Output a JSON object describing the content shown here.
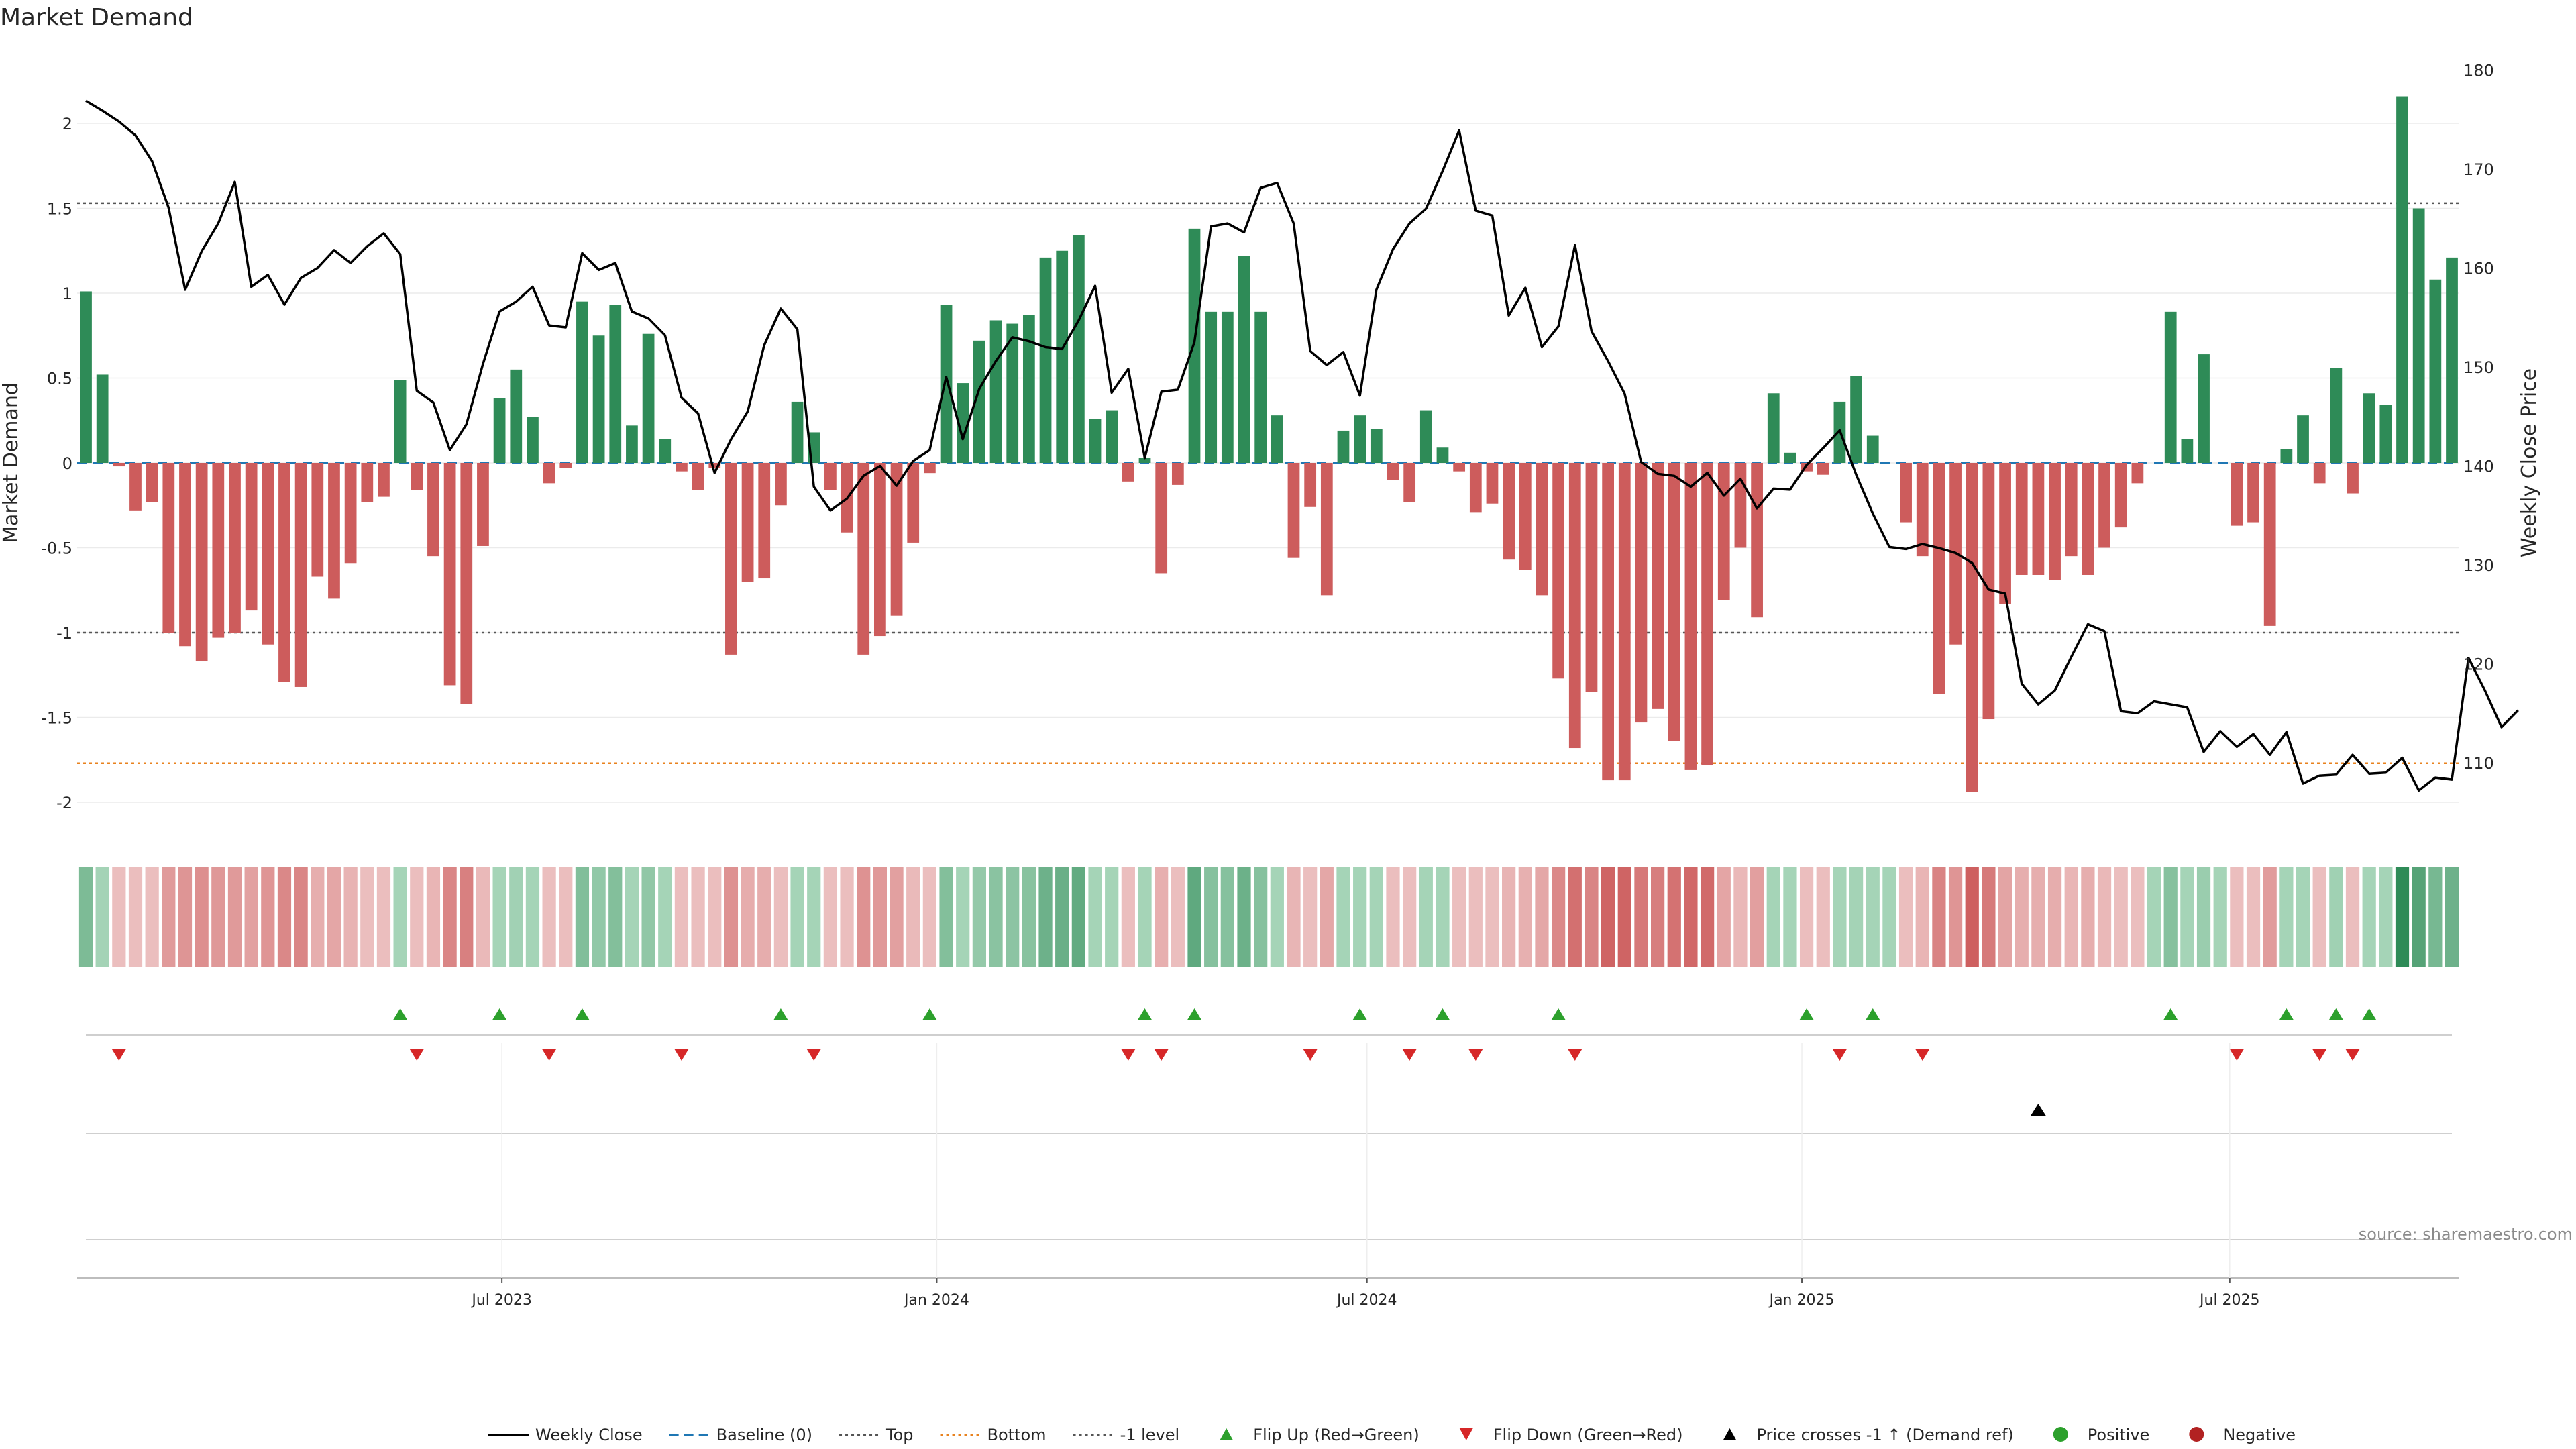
{
  "chart_data": {
    "type": "bar",
    "title": "Market Demand",
    "source": "source: sharemaestro.com",
    "left_axis": {
      "label": "Market Demand",
      "ylim": [
        -2.2,
        2.35
      ],
      "ticks": [
        -2,
        -1.5,
        -1,
        -0.5,
        0,
        0.5,
        1,
        1.5,
        2
      ]
    },
    "right_axis": {
      "label": "Weekly Close Price",
      "ylim": [
        103.5,
        182
      ],
      "ticks": [
        110,
        120,
        130,
        140,
        150,
        160,
        170,
        180
      ]
    },
    "x_axis": {
      "start": "2023-01-06",
      "week_days": 7,
      "ticks": [
        {
          "label": "Jul 2023",
          "date": "2023-07-01"
        },
        {
          "label": "Jan 2024",
          "date": "2024-01-01"
        },
        {
          "label": "Jul 2024",
          "date": "2024-07-01"
        },
        {
          "label": "Jan 2025",
          "date": "2025-01-01"
        },
        {
          "label": "Jul 2025",
          "date": "2025-07-01"
        }
      ]
    },
    "reference_lines": {
      "top": 1.53,
      "bottom": -1.77,
      "minus_one": -1
    },
    "demand": [
      1.01,
      0.52,
      -0.02,
      -0.28,
      -0.23,
      -1.0,
      -1.08,
      -1.17,
      -1.03,
      -1.0,
      -0.87,
      -1.07,
      -1.29,
      -1.32,
      -0.67,
      -0.8,
      -0.59,
      -0.23,
      -0.2,
      0.49,
      -0.16,
      -0.55,
      -1.31,
      -1.42,
      -0.49,
      0.38,
      0.55,
      0.27,
      -0.12,
      -0.03,
      0.95,
      0.75,
      0.93,
      0.22,
      0.76,
      0.14,
      -0.05,
      -0.16,
      -0.03,
      -1.13,
      -0.7,
      -0.68,
      -0.25,
      0.36,
      0.18,
      -0.16,
      -0.41,
      -1.13,
      -1.02,
      -0.9,
      -0.47,
      -0.06,
      0.93,
      0.47,
      0.72,
      0.84,
      0.82,
      0.87,
      1.21,
      1.25,
      1.34,
      0.26,
      0.31,
      -0.11,
      0.03,
      -0.65,
      -0.13,
      1.38,
      0.89,
      0.89,
      1.22,
      0.89,
      0.28,
      -0.56,
      -0.26,
      -0.78,
      0.19,
      0.28,
      0.2,
      -0.1,
      -0.23,
      0.31,
      0.09,
      -0.05,
      -0.29,
      -0.24,
      -0.57,
      -0.63,
      -0.78,
      -1.27,
      -1.68,
      -1.35,
      -1.87,
      -1.87,
      -1.53,
      -1.45,
      -1.64,
      -1.81,
      -1.78,
      -0.81,
      -0.5,
      -0.91,
      0.41,
      0.06,
      -0.05,
      -0.07,
      0.36,
      0.51,
      0.16,
      0.0,
      -0.35,
      -0.55,
      -1.36,
      -1.07,
      -1.94,
      -1.51,
      -0.83,
      -0.66,
      -0.66,
      -0.69,
      -0.55,
      -0.66,
      -0.5,
      -0.38,
      -0.12,
      0.0,
      0.89,
      0.14,
      0.64,
      0.0,
      -0.37,
      -0.35,
      -0.96,
      0.08,
      0.28,
      -0.12,
      0.56,
      -0.18,
      0.41,
      0.34,
      2.16,
      1.5,
      1.08,
      1.21
    ],
    "weekly_close": [
      176.9,
      175.9,
      174.8,
      173.4,
      170.8,
      166.1,
      157.8,
      161.7,
      164.5,
      168.7,
      158.1,
      159.3,
      156.3,
      159.0,
      160.0,
      161.8,
      160.5,
      162.2,
      163.5,
      161.4,
      147.6,
      146.4,
      141.6,
      144.2,
      150.3,
      155.6,
      156.6,
      158.1,
      154.2,
      154.0,
      161.5,
      159.8,
      160.5,
      155.6,
      154.9,
      153.2,
      146.9,
      145.3,
      139.3,
      142.7,
      145.5,
      152.2,
      155.9,
      153.8,
      137.9,
      135.5,
      136.7,
      139.0,
      140.0,
      138.0,
      140.5,
      141.6,
      149.0,
      142.7,
      147.8,
      150.6,
      153.0,
      152.6,
      152.0,
      151.8,
      154.7,
      158.2,
      147.4,
      149.8,
      140.8,
      147.5,
      147.7,
      152.5,
      164.2,
      164.5,
      163.6,
      168.1,
      168.6,
      164.5,
      151.6,
      150.2,
      151.5,
      147.1,
      157.8,
      161.9,
      164.5,
      166.0,
      169.8,
      173.9,
      165.8,
      165.3,
      155.2,
      158.0,
      152.0,
      154.1,
      162.3,
      153.6,
      150.6,
      147.3,
      140.4,
      139.2,
      139.0,
      137.9,
      139.3,
      137.0,
      138.7,
      135.7,
      137.7,
      137.6,
      140.1,
      141.8,
      143.6,
      139.1,
      135.2,
      131.8,
      131.6,
      132.1,
      131.7,
      131.2,
      130.2,
      127.5,
      127.1,
      118.0,
      115.9,
      117.3,
      120.7,
      124.0,
      123.3,
      115.2,
      115.0,
      116.2,
      115.9,
      115.6,
      111.1,
      113.2,
      111.6,
      112.9,
      110.8,
      113.1,
      107.9,
      108.7,
      108.8,
      110.8,
      108.9,
      109.0,
      110.5,
      107.2,
      108.5,
      108.3,
      120.6,
      117.3,
      113.6,
      115.3
    ],
    "heat_strip": "Demand heat strip",
    "flip_up_weeks": [
      19,
      25,
      30,
      42,
      51,
      64,
      67,
      77,
      82,
      89,
      104,
      108,
      126,
      133,
      136,
      138
    ],
    "flip_down_weeks": [
      2,
      20,
      28,
      36,
      44,
      63,
      65,
      74,
      80,
      84,
      90,
      106,
      111,
      130,
      135,
      137
    ],
    "price_cross_weeks": [
      118
    ],
    "legend": [
      {
        "label": "Weekly Close",
        "kind": "line",
        "color": "#000000"
      },
      {
        "label": "Baseline (0)",
        "kind": "dash",
        "color": "#1f77b4"
      },
      {
        "label": "Top",
        "kind": "dot",
        "color": "#555555"
      },
      {
        "label": "Bottom",
        "kind": "dot",
        "color": "#e8821e"
      },
      {
        "label": "-1 level",
        "kind": "dot",
        "color": "#555555"
      },
      {
        "label": "Flip Up (Red→Green)",
        "kind": "tri-up",
        "color": "#2ca02c"
      },
      {
        "label": "Flip Down (Green→Red)",
        "kind": "tri-down",
        "color": "#d62728"
      },
      {
        "label": "Price crosses -1 ↑ (Demand ref)",
        "kind": "tri-up",
        "color": "#000000"
      },
      {
        "label": "Positive",
        "kind": "circle",
        "color": "#2ca02c"
      },
      {
        "label": "Negative",
        "kind": "circle",
        "color": "#b22222"
      }
    ],
    "colors": {
      "positive": "#2e8b57",
      "negative": "#cd5c5c",
      "price": "#000000",
      "baseline": "#1f77b4"
    }
  }
}
